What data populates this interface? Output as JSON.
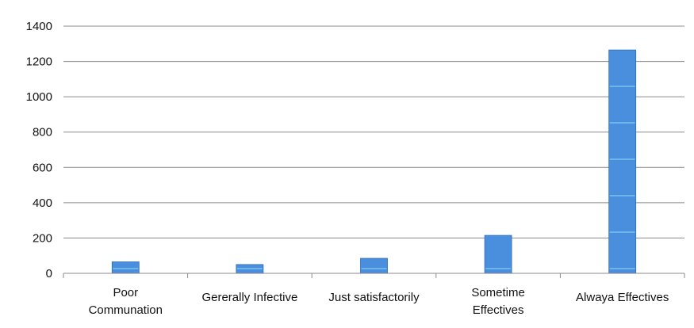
{
  "chart_data": {
    "type": "bar",
    "title": "",
    "xlabel": "",
    "ylabel": "",
    "categories": [
      [
        "Poor",
        "Communation"
      ],
      [
        "Gererally Infective"
      ],
      [
        "Just satisfactorily"
      ],
      [
        "Sometime",
        "Effectives"
      ],
      [
        "Alwaya Effectives"
      ]
    ],
    "values": [
      65,
      50,
      85,
      215,
      1265
    ],
    "ylim": [
      0,
      1400
    ],
    "yticks": [
      "0",
      "200",
      "400",
      "600",
      "800",
      "1000",
      "1200",
      "1400"
    ],
    "grid": true,
    "legend": "none",
    "bar_color": "#4a8fdd"
  }
}
